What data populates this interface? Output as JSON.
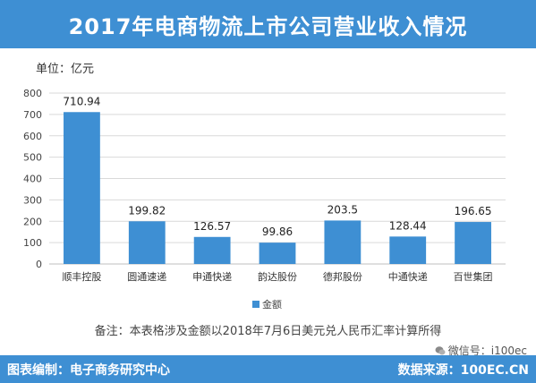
{
  "title": "2017年电商物流上市公司营业收入情况",
  "unit_label": "单位：亿元",
  "note": "备注：本表格涉及金额以2018年7月6日美元兑人民币汇率计算所得",
  "footer": {
    "left": "图表编制：电子商务研究中心",
    "right": "数据来源：100EC.CN"
  },
  "watermark": "微信号：i100ec",
  "colors": {
    "accent": "#3e8fd3",
    "bar": "#3e8fd3",
    "grid": "#d9d9d9"
  },
  "chart_data": {
    "type": "bar",
    "categories": [
      "顺丰控股",
      "圆通速递",
      "申通快递",
      "韵达股份",
      "德邦股份",
      "中通快递",
      "百世集团"
    ],
    "series": [
      {
        "name": "金额",
        "values": [
          710.94,
          199.82,
          126.57,
          99.86,
          203.5,
          128.44,
          196.65
        ]
      }
    ],
    "data_labels": [
      "710.94",
      "199.82",
      "126.57",
      "99.86",
      "203.5",
      "128.44",
      "196.65"
    ],
    "ylabel": "单位：亿元",
    "ylim": [
      0,
      800
    ],
    "yticks": [
      0,
      100,
      200,
      300,
      400,
      500,
      600,
      700,
      800
    ],
    "grid": true,
    "legend": "bottom"
  }
}
